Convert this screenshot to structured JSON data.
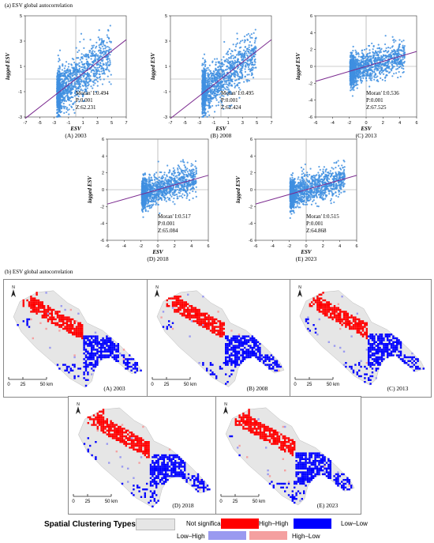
{
  "section_a_title": "(a) ESV global autocorrelation",
  "section_b_title": "(b) ESV global autocorrelation",
  "colors": {
    "scatter": "#3f8fe0",
    "regression": "#7b2a8f",
    "not_significant": "#e6e6e6",
    "high_high": "#ff0000",
    "low_low": "#0000ff",
    "low_high": "#9a9af0",
    "high_low": "#f4a0a0"
  },
  "chart_data": [
    {
      "type": "scatter",
      "panel": "(A)  2003",
      "xlabel": "ESV",
      "ylabel": "lagged ESV",
      "xlim": [
        -7,
        7
      ],
      "ylim": [
        -3,
        5
      ],
      "xticks": [
        "-7",
        "-5",
        "-3",
        "-1",
        "1",
        "3",
        "5",
        "7"
      ],
      "yticks": [
        "-3",
        "-1",
        "1",
        "3",
        "5"
      ],
      "moran_i": "Moran' I:0.494",
      "p": "P:0.001",
      "z": "Z:62.231"
    },
    {
      "type": "scatter",
      "panel": "(B)  2008",
      "xlabel": "ESV",
      "ylabel": "lagged ESV",
      "xlim": [
        -7,
        7
      ],
      "ylim": [
        -3,
        5
      ],
      "xticks": [
        "-7",
        "-5",
        "-3",
        "-1",
        "1",
        "3",
        "5",
        "7"
      ],
      "yticks": [
        "-3",
        "-1",
        "1",
        "3",
        "5"
      ],
      "moran_i": "Moran' I:0.495",
      "p": "P:0.001",
      "z": "Z:62.424"
    },
    {
      "type": "scatter",
      "panel": "(C)  2013",
      "xlabel": "ESV",
      "ylabel": "lagged ESV",
      "xlim": [
        -6,
        6
      ],
      "ylim": [
        -6,
        6
      ],
      "xticks": [
        "-6",
        "-4",
        "-2",
        "0",
        "2",
        "4",
        "6"
      ],
      "yticks": [
        "-6",
        "-4",
        "-2",
        "0",
        "2",
        "4",
        "6"
      ],
      "moran_i": "Moran' I:0.536",
      "p": "P:0.001",
      "z": "Z:67.525"
    },
    {
      "type": "scatter",
      "panel": "(D)  2018",
      "xlabel": "ESV",
      "ylabel": "lagged ESV",
      "xlim": [
        -6,
        6
      ],
      "ylim": [
        -6,
        6
      ],
      "xticks": [
        "-6",
        "-4",
        "-2",
        "0",
        "2",
        "4",
        "6"
      ],
      "yticks": [
        "-6",
        "-4",
        "-2",
        "0",
        "2",
        "4",
        "6"
      ],
      "moran_i": "Moran' I:0.517",
      "p": "P:0.001",
      "z": "Z:65.084"
    },
    {
      "type": "scatter",
      "panel": "(E)  2023",
      "xlabel": "ESV",
      "ylabel": "lagged ESV",
      "xlim": [
        -6,
        6
      ],
      "ylim": [
        -6,
        6
      ],
      "xticks": [
        "-6",
        "-4",
        "-2",
        "0",
        "2",
        "4",
        "6"
      ],
      "yticks": [
        "-6",
        "-4",
        "-2",
        "0",
        "2",
        "4",
        "6"
      ],
      "moran_i": "Moran' I:0.515",
      "p": "P:0.001",
      "z": "Z:64.868"
    }
  ],
  "maps": [
    {
      "panel": "(A)  2003"
    },
    {
      "panel": "(B)  2008"
    },
    {
      "panel": "(C)  2013"
    },
    {
      "panel": "(D)  2018"
    },
    {
      "panel": "(E)  2023"
    }
  ],
  "scale_bar": {
    "ticks": [
      "0",
      "25",
      "50 km"
    ]
  },
  "north": "N",
  "legend": {
    "title": "Spatial Clustering Types :",
    "items": [
      "Not significant",
      "High–High",
      "Low–Low",
      "Low–High",
      "High–Low"
    ]
  }
}
